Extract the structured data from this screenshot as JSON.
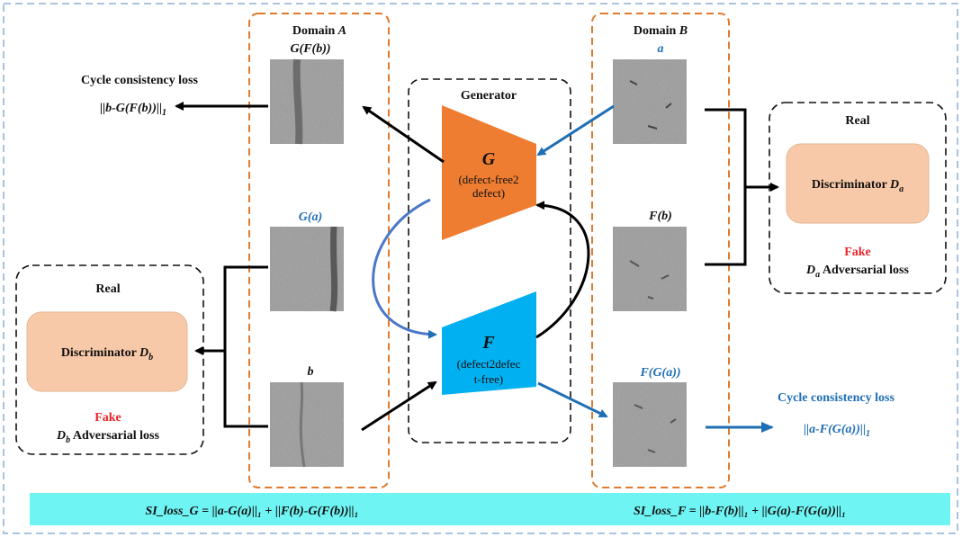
{
  "colors": {
    "outer_border": "#a9c4e0",
    "domain_border": "#e07a2e",
    "generator_G": "#ee7d31",
    "generator_F": "#00b0f0",
    "discriminator_fill": "#f7c9a8",
    "formula_bar": "#6ff4f4",
    "blue_text": "#1f6fb5",
    "red_text": "#e8262a"
  },
  "domain_a": {
    "title_prefix": "Domain ",
    "title_var": "A",
    "images": [
      {
        "label": "G(F(b))",
        "label_color": "black"
      },
      {
        "label": "G(a)",
        "label_color": "blue"
      },
      {
        "label": "b",
        "label_color": "black"
      }
    ]
  },
  "domain_b": {
    "title_prefix": "Domain ",
    "title_var": "B",
    "images": [
      {
        "label": "a",
        "label_color": "blue"
      },
      {
        "label": "F(b)",
        "label_color": "black"
      },
      {
        "label": "F(G(a))",
        "label_color": "blue"
      }
    ]
  },
  "generator": {
    "title": "Generator",
    "g": {
      "symbol": "G",
      "desc_line1": "(defect-free2",
      "desc_line2": "defect)"
    },
    "f": {
      "symbol": "F",
      "desc_line1": "(defect2defec",
      "desc_line2": "t-free)"
    }
  },
  "discriminator_a": {
    "real_label": "Real",
    "name": "Discriminator ",
    "sym": "D",
    "sub": "a",
    "fake_label": "Fake",
    "loss_suffix": " Adversarial loss"
  },
  "discriminator_b": {
    "real_label": "Real",
    "name": "Discriminator ",
    "sym": "D",
    "sub": "b",
    "fake_label": "Fake",
    "loss_suffix": " Adversarial loss"
  },
  "cycle_loss_top": {
    "title": "Cycle consistency loss",
    "formula": "||b-G(F(b))||",
    "subscript": "1"
  },
  "cycle_loss_bottom": {
    "title": "Cycle consistency loss",
    "formula": "||a-F(G(a))||",
    "subscript": "1"
  },
  "formula_bar": {
    "left": "SI_loss_G = ||a-G(a)||₁ + ||F(b)-G(F(b))||₁",
    "right": "SI_loss_F = ||b-F(b)||₁ + ||G(a)-F(G(a))||₁"
  }
}
